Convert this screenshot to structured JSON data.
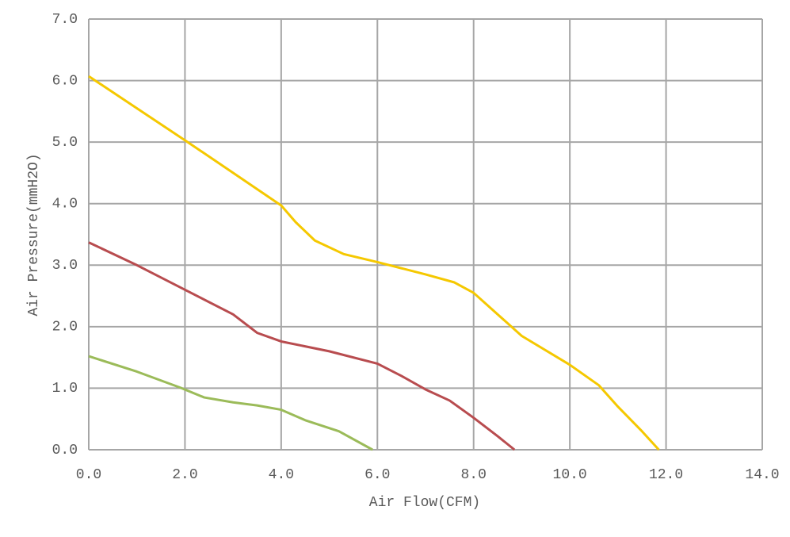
{
  "chart_data": {
    "type": "line",
    "xlabel": "Air Flow(CFM)",
    "ylabel": "Air Pressure(mmH2O)",
    "xlim": [
      0,
      14
    ],
    "ylim": [
      0,
      7
    ],
    "xticks": [
      {
        "value": 0,
        "label": "0.0"
      },
      {
        "value": 2,
        "label": "2.0"
      },
      {
        "value": 4,
        "label": "4.0"
      },
      {
        "value": 6,
        "label": "6.0"
      },
      {
        "value": 8,
        "label": "8.0"
      },
      {
        "value": 10,
        "label": "10.0"
      },
      {
        "value": 12,
        "label": "12.0"
      },
      {
        "value": 14,
        "label": "14.0"
      }
    ],
    "yticks": [
      {
        "value": 0,
        "label": "0.0"
      },
      {
        "value": 1,
        "label": "1.0"
      },
      {
        "value": 2,
        "label": "2.0"
      },
      {
        "value": 3,
        "label": "3.0"
      },
      {
        "value": 4,
        "label": "4.0"
      },
      {
        "value": 5,
        "label": "5.0"
      },
      {
        "value": 6,
        "label": "6.0"
      },
      {
        "value": 7,
        "label": "7.0"
      }
    ],
    "grid": true,
    "series": [
      {
        "color": "#f5c800",
        "x": [
          0,
          1,
          2,
          3,
          4,
          4.3,
          4.7,
          5.3,
          6,
          7,
          7.6,
          8,
          8.5,
          9,
          10,
          10.6,
          11,
          11.5,
          11.85
        ],
        "values": [
          6.07,
          5.55,
          5.03,
          4.5,
          3.97,
          3.7,
          3.4,
          3.18,
          3.05,
          2.85,
          2.72,
          2.55,
          2.2,
          1.85,
          1.38,
          1.05,
          0.7,
          0.3,
          0
        ]
      },
      {
        "color": "#b84c4f",
        "x": [
          0,
          1,
          2,
          3,
          3.5,
          4,
          5,
          6,
          6.5,
          7,
          7.5,
          8,
          8.5,
          8.85
        ],
        "values": [
          3.37,
          3.0,
          2.6,
          2.2,
          1.9,
          1.76,
          1.6,
          1.4,
          1.2,
          0.98,
          0.8,
          0.52,
          0.22,
          0
        ]
      },
      {
        "color": "#9bbb59",
        "x": [
          0,
          1,
          1.9,
          2.4,
          3,
          3.5,
          4,
          4.5,
          5.2,
          5.9
        ],
        "values": [
          1.52,
          1.27,
          1.01,
          0.85,
          0.77,
          0.72,
          0.65,
          0.48,
          0.3,
          0
        ]
      }
    ]
  }
}
